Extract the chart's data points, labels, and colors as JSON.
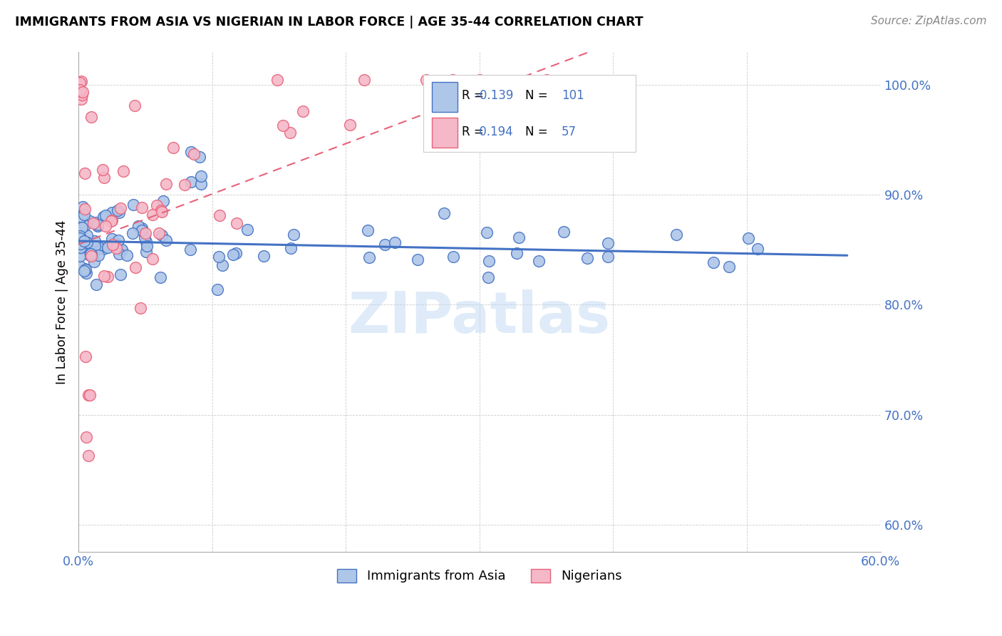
{
  "title": "IMMIGRANTS FROM ASIA VS NIGERIAN IN LABOR FORCE | AGE 35-44 CORRELATION CHART",
  "source": "Source: ZipAtlas.com",
  "ylabel": "In Labor Force | Age 35-44",
  "color_asia": "#aec6e8",
  "color_asia_line": "#4472c4",
  "color_nig": "#f4b8c8",
  "color_nig_line": "#e8627a",
  "xlim": [
    0.0,
    0.6
  ],
  "ylim": [
    0.575,
    1.03
  ],
  "ytick_vals": [
    0.6,
    0.7,
    0.8,
    0.9,
    1.0
  ],
  "ytick_labels": [
    "60.0%",
    "70.0%",
    "80.0%",
    "90.0%",
    "100.0%"
  ],
  "xtick_vals": [
    0.0,
    0.6
  ],
  "xtick_labels": [
    "0.0%",
    "60.0%"
  ],
  "legend_r_asia": "-0.139",
  "legend_n_asia": "101",
  "legend_r_nig": "0.194",
  "legend_n_nig": "57",
  "watermark": "ZIPatlas"
}
